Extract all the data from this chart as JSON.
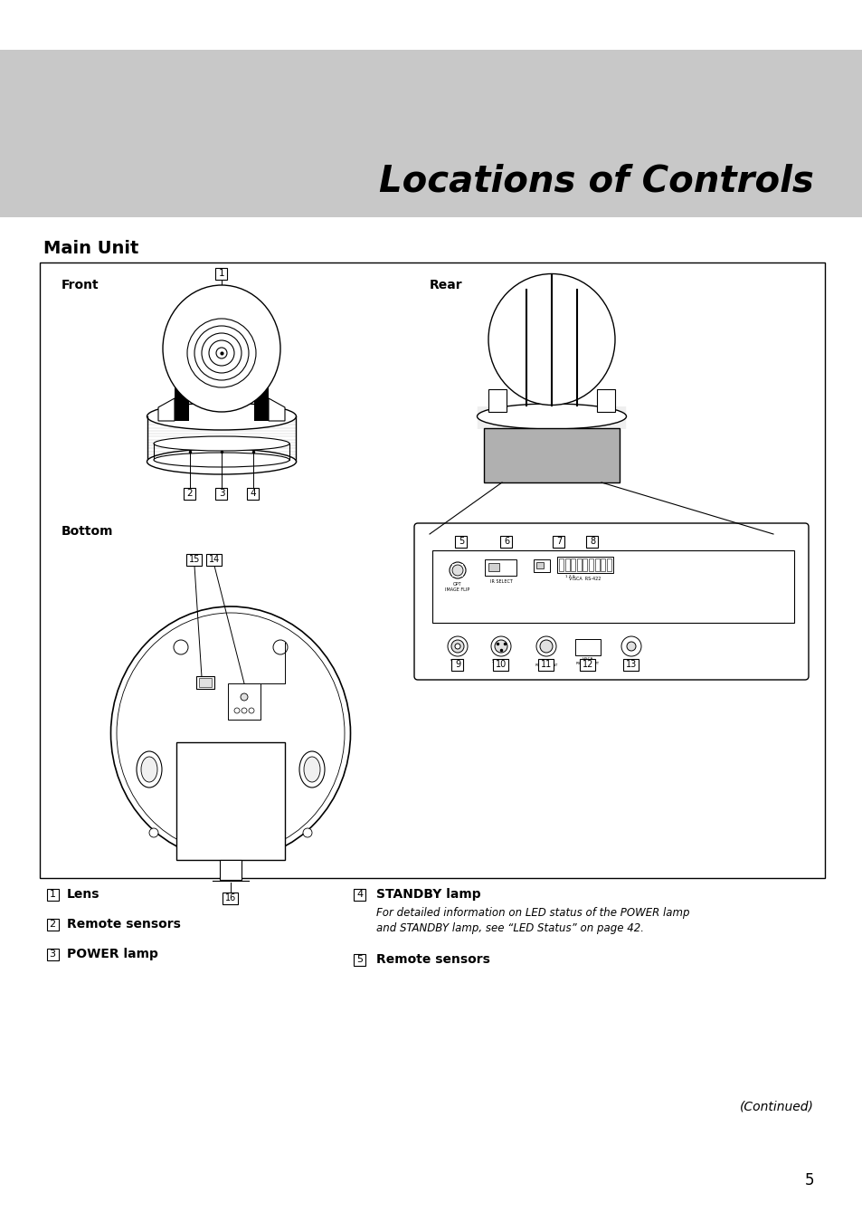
{
  "title": "Locations of Controls",
  "section_title": "Main Unit",
  "header_bg": "#c8c8c8",
  "page_bg": "#ffffff",
  "front_label": "Front",
  "rear_label": "Rear",
  "bottom_label": "Bottom",
  "legend_left": [
    {
      "num": "1",
      "text": "Lens"
    },
    {
      "num": "2",
      "text": "Remote sensors"
    },
    {
      "num": "3",
      "text": "POWER lamp"
    }
  ],
  "legend_right_title": {
    "num": "4",
    "text": "STANDBY lamp"
  },
  "legend_right_sub": "For detailed information on LED status of the POWER lamp\nand STANDBY lamp, see “LED Status” on page 42.",
  "legend_right_5": {
    "num": "5",
    "text": "Remote sensors"
  },
  "continued_text": "(Continued)",
  "page_number": "5"
}
